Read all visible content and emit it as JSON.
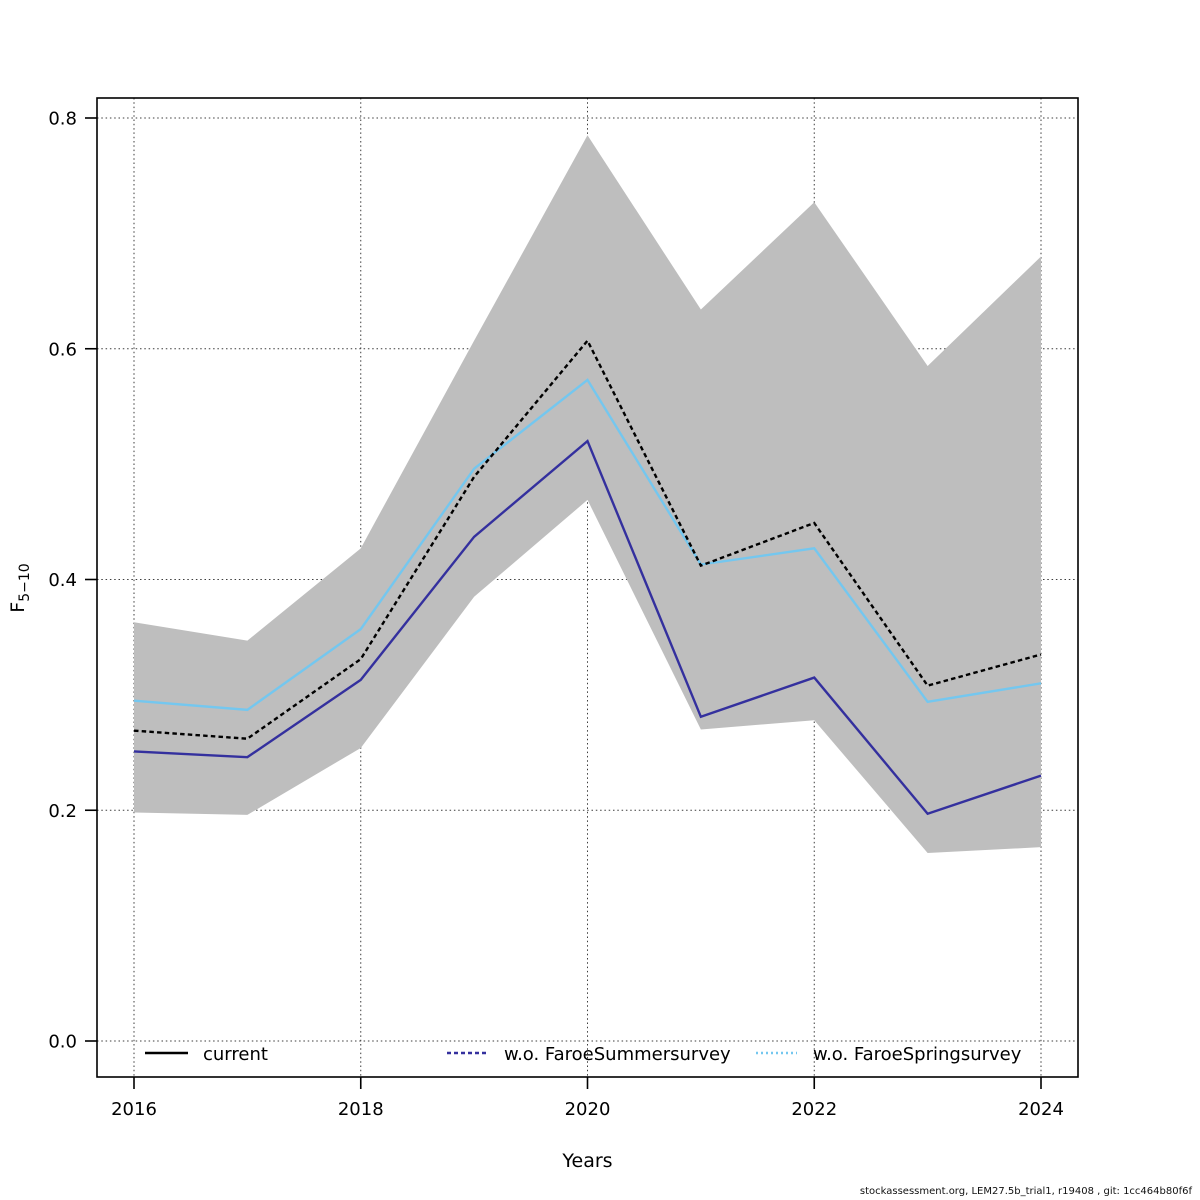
{
  "figure": {
    "background": "#ffffff",
    "footer": "stockassessment.org, LEM27.5b_trial1, r19408 , git: 1cc464b80f6f"
  },
  "chart_data": {
    "type": "line",
    "title": "",
    "xlabel": "Years",
    "ylabel": "F",
    "ylabel_sub": "5−10",
    "grid": true,
    "xlim": [
      2015.67,
      2024.33
    ],
    "ylim": [
      -0.03,
      0.82
    ],
    "x_ticks": [
      "2016",
      "2018",
      "2020",
      "2022",
      "2024"
    ],
    "y_ticks": [
      "0.0",
      "0.2",
      "0.4",
      "0.6",
      "0.8"
    ],
    "x": [
      2016,
      2017,
      2018,
      2019,
      2020,
      2021,
      2022,
      2023,
      2024
    ],
    "series": [
      {
        "id": "current",
        "name": "current",
        "color": "#000000",
        "dash": "4.5,3.2",
        "values": [
          0.269,
          0.262,
          0.331,
          0.489,
          0.607,
          0.412,
          0.449,
          0.308,
          0.335
        ]
      },
      {
        "id": "wo-faroesummersurvey",
        "name": "w.o. FaroeSummersurvey",
        "color": "#34309E",
        "dash": "",
        "values": [
          0.251,
          0.246,
          0.313,
          0.437,
          0.52,
          0.281,
          0.315,
          0.197,
          0.23
        ]
      },
      {
        "id": "wo-faroespringsurvey",
        "name": "w.o. FaroeSpringsurvey",
        "color": "#74C7EF",
        "dash": "",
        "values": [
          0.295,
          0.287,
          0.357,
          0.496,
          0.573,
          0.413,
          0.427,
          0.294,
          0.31
        ]
      }
    ],
    "band": {
      "name": "current confidence band",
      "color": "#BEBEBE",
      "lower": [
        0.198,
        0.196,
        0.254,
        0.385,
        0.469,
        0.27,
        0.278,
        0.163,
        0.168
      ],
      "upper": [
        0.363,
        0.347,
        0.427,
        0.607,
        0.785,
        0.634,
        0.727,
        0.585,
        0.68
      ]
    },
    "legend_position": "bottom-inside",
    "legend": [
      {
        "label": "current",
        "color": "#000000",
        "dash": ""
      },
      {
        "label": "w.o. FaroeSummersurvey",
        "color": "#34309E",
        "dash": "4,3"
      },
      {
        "label": "w.o. FaroeSpringsurvey",
        "color": "#74C7EF",
        "dash": "2,3"
      }
    ]
  }
}
